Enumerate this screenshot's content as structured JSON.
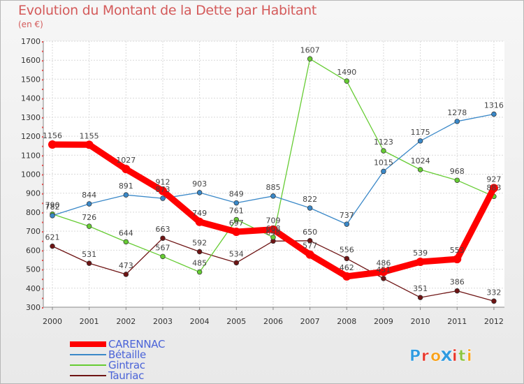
{
  "chart_data": {
    "type": "line",
    "title": "Evolution du Montant de la Dette par Habitant",
    "subtitle": "(en €)",
    "xlabel": "",
    "ylabel": "",
    "x": [
      "2000",
      "2001",
      "2002",
      "2003",
      "2004",
      "2005",
      "2006",
      "2007",
      "2008",
      "2009",
      "2010",
      "2011",
      "2012"
    ],
    "ylim": [
      300,
      1700
    ],
    "yticks": [
      300,
      400,
      500,
      600,
      700,
      800,
      900,
      1000,
      1100,
      1200,
      1300,
      1400,
      1500,
      1600,
      1700
    ],
    "grid": true,
    "legend_position": "bottom-left",
    "series": [
      {
        "name": "CARENNAC",
        "color": "#ff0000",
        "values": [
          1156,
          1155,
          1027,
          912,
          749,
          697,
          709,
          577,
          462,
          486,
          539,
          553,
          927
        ]
      },
      {
        "name": "Bétaille",
        "color": "#3a88c8",
        "values": [
          782,
          844,
          891,
          873,
          903,
          849,
          885,
          822,
          737,
          1015,
          1175,
          1278,
          1316
        ]
      },
      {
        "name": "Gintrac",
        "color": "#66cc33",
        "values": [
          790,
          726,
          644,
          567,
          485,
          761,
          668,
          1607,
          1490,
          1123,
          1024,
          968,
          883
        ]
      },
      {
        "name": "Tauriac",
        "color": "#6e1414",
        "values": [
          621,
          531,
          473,
          663,
          592,
          534,
          648,
          650,
          556,
          451,
          351,
          386,
          332
        ]
      }
    ]
  },
  "logo": {
    "text": "Proxiti",
    "letter_colors": [
      "#2f9be0",
      "#e8352a",
      "#f7a11a",
      "#2f9be0",
      "#e8352a",
      "#8bc53f",
      "#f7a11a"
    ]
  }
}
